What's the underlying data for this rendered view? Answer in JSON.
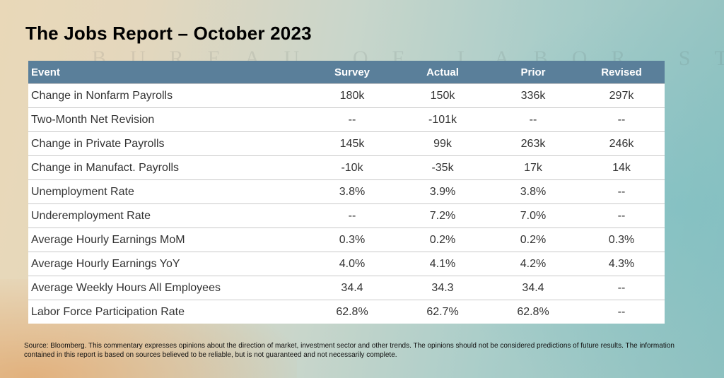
{
  "title": "The Jobs Report – October 2023",
  "table": {
    "headers": [
      "Event",
      "Survey",
      "Actual",
      "Prior",
      "Revised"
    ],
    "rows": [
      [
        "Change in Nonfarm Payrolls",
        "180k",
        "150k",
        "336k",
        "297k"
      ],
      [
        "Two-Month Net Revision",
        "--",
        "-101k",
        "--",
        "--"
      ],
      [
        "Change in Private Payrolls",
        "145k",
        "99k",
        "263k",
        "246k"
      ],
      [
        "Change in Manufact. Payrolls",
        "-10k",
        "-35k",
        "17k",
        "14k"
      ],
      [
        "Unemployment Rate",
        "3.8%",
        "3.9%",
        "3.8%",
        "--"
      ],
      [
        "Underemployment Rate",
        "--",
        "7.2%",
        "7.0%",
        "--"
      ],
      [
        "Average Hourly Earnings MoM",
        "0.3%",
        "0.2%",
        "0.2%",
        "0.3%"
      ],
      [
        "Average Hourly Earnings YoY",
        "4.0%",
        "4.1%",
        "4.2%",
        "4.3%"
      ],
      [
        "Average Weekly Hours All Employees",
        "34.4",
        "34.3",
        "34.4",
        "--"
      ],
      [
        "Labor Force Participation Rate",
        "62.8%",
        "62.7%",
        "62.8%",
        "--"
      ]
    ]
  },
  "footnote": "Source: Bloomberg. This commentary expresses opinions about the direction of market, investment sector and other trends. The opinions should not be considered predictions of future results. The information contained in this report is based on sources believed to be reliable, but is not guaranteed and not necessarily complete.",
  "background_text": "BUREAU OF LABOR STATISTICS",
  "colors": {
    "header_background": "#5a7f9a",
    "header_text": "#ffffff",
    "row_background": "#ffffff",
    "row_divider": "#c9c9c9",
    "cell_text": "#333333"
  }
}
